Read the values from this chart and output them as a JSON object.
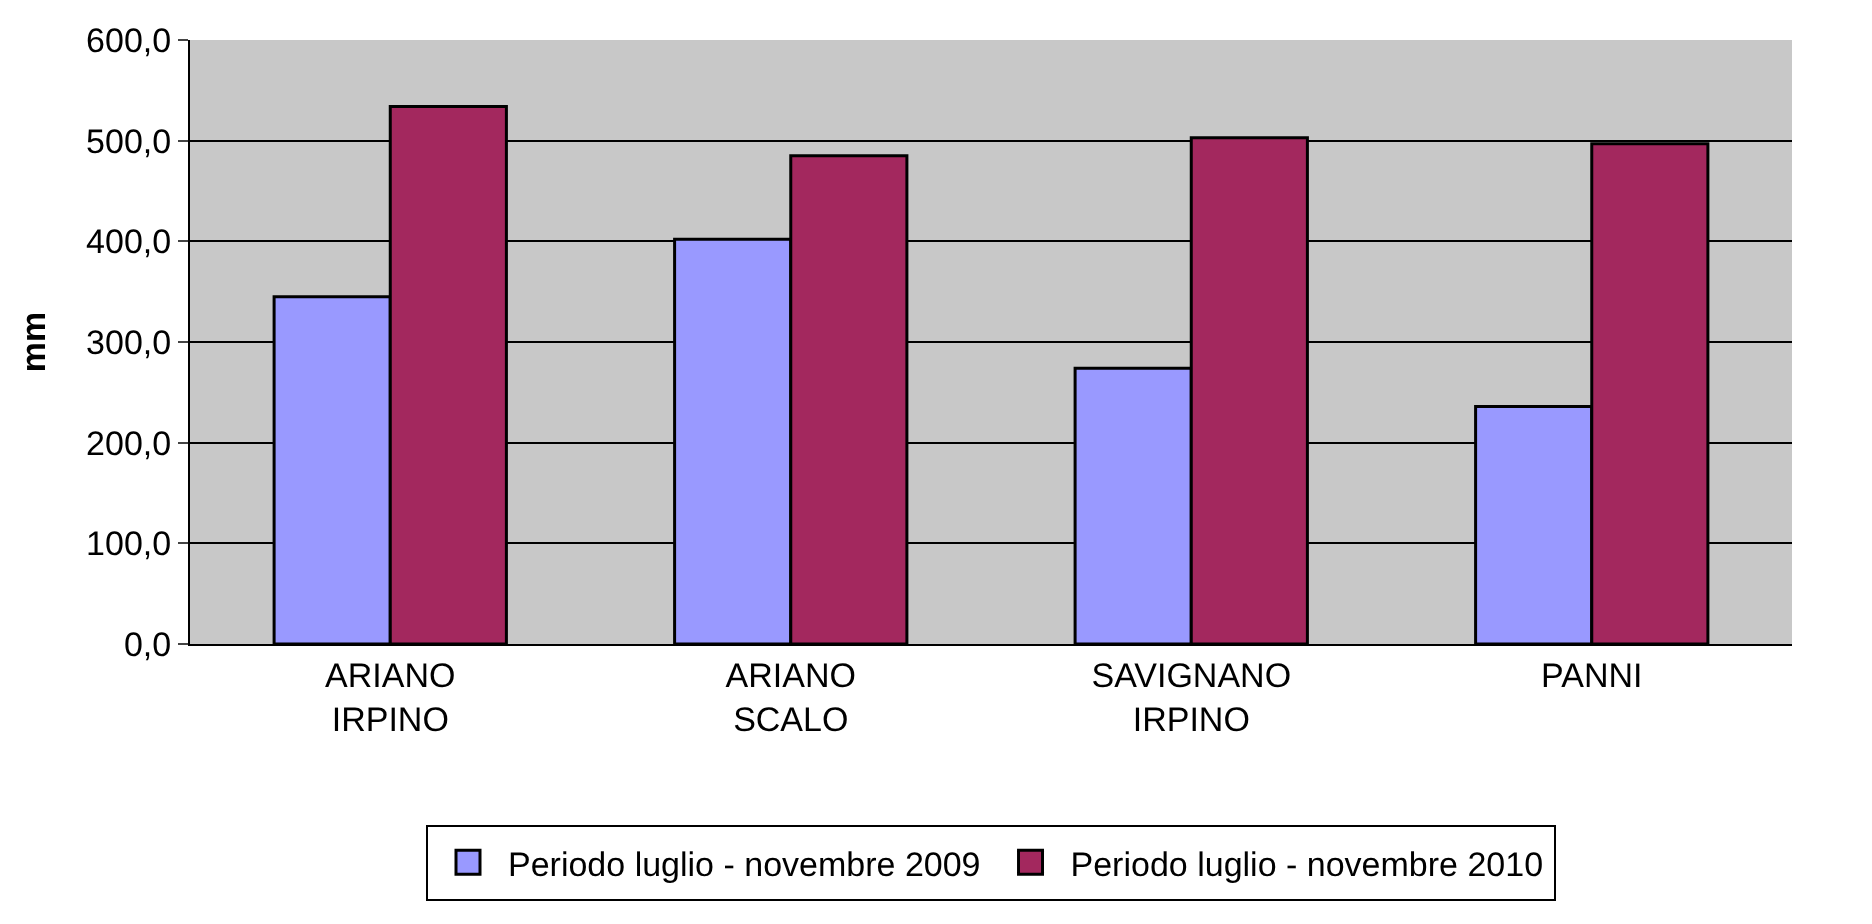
{
  "chart_data": {
    "type": "bar",
    "ylabel": "mm",
    "categories": [
      "ARIANO\nIRPINO",
      "ARIANO\nSCALO",
      "SAVIGNANO\nIRPINO",
      "PANNI"
    ],
    "series": [
      {
        "name": "Periodo luglio - novembre 2009",
        "color": "#9999ff",
        "values": [
          345,
          402,
          274,
          236
        ]
      },
      {
        "name": "Periodo luglio - novembre 2010",
        "color": "#a3285e",
        "values": [
          534,
          485,
          503,
          497
        ]
      }
    ],
    "ylim": [
      0,
      600
    ],
    "yticks": [
      {
        "value": 0,
        "label": "0,0"
      },
      {
        "value": 100,
        "label": "100,0"
      },
      {
        "value": 200,
        "label": "200,0"
      },
      {
        "value": 300,
        "label": "300,0"
      },
      {
        "value": 400,
        "label": "400,0"
      },
      {
        "value": 500,
        "label": "500,0"
      },
      {
        "value": 600,
        "label": "600,0"
      }
    ],
    "grid": "y",
    "legend": "bottom"
  }
}
